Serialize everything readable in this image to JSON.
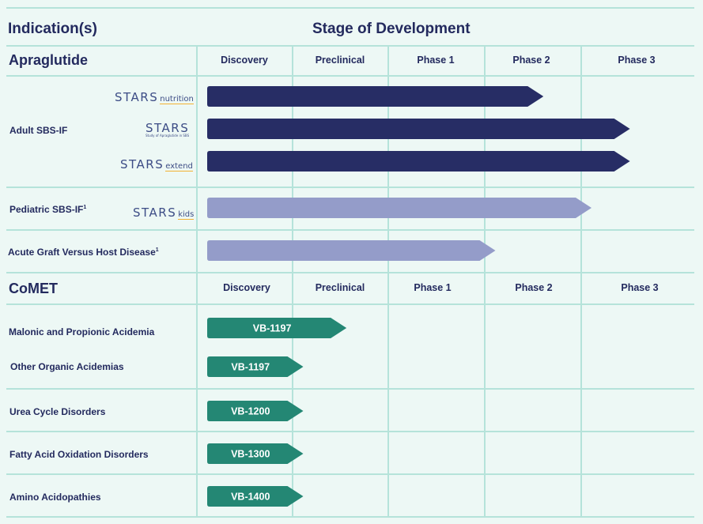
{
  "header": {
    "indications_title": "Indication(s)",
    "stage_title": "Stage of Development"
  },
  "sections": [
    {
      "name": "Apraglutide",
      "columns": [
        "Discovery",
        "Preclinical",
        "Phase 1",
        "Phase 2",
        "Phase 3"
      ]
    },
    {
      "name": "CoMET",
      "columns": [
        "Discovery",
        "Preclinical",
        "Phase 1",
        "Phase 2",
        "Phase 3"
      ]
    }
  ],
  "rows": [
    {
      "indication": "Adult SBS-IF",
      "footnote": ""
    },
    {
      "indication": "Pediatric SBS-IF",
      "footnote": "1"
    },
    {
      "indication": "Acute Graft Versus Host Disease",
      "footnote": "1"
    },
    {
      "indication": "Malonic and Propionic Acidemia",
      "footnote": ""
    },
    {
      "indication": "Other Organic Acidemias",
      "footnote": ""
    },
    {
      "indication": "Urea Cycle Disorders",
      "footnote": ""
    },
    {
      "indication": "Fatty Acid Oxidation Disorders",
      "footnote": ""
    },
    {
      "indication": "Amino Acidopathies",
      "footnote": ""
    }
  ],
  "trial_logos": [
    {
      "name": "STARS",
      "suffix": "nutrition",
      "subtitle": ""
    },
    {
      "name": "STARS",
      "suffix": "",
      "subtitle": "Study of Apraglutide in SBS"
    },
    {
      "name": "STARS",
      "suffix": "extend",
      "subtitle": ""
    },
    {
      "name": "STARS",
      "suffix": "kids",
      "subtitle": ""
    }
  ],
  "colors": {
    "background": "#edf8f5",
    "grid": "#b5e3da",
    "text": "#232a5e",
    "adult_bar": "#272d65",
    "lavender_bar": "#949cc9",
    "comet_bar": "#248774",
    "logo_accent": "#f2b232"
  },
  "chart_data": {
    "type": "bar",
    "orientation": "horizontal",
    "stage_axis": [
      "Discovery",
      "Preclinical",
      "Phase 1",
      "Phase 2",
      "Phase 3"
    ],
    "progress_unit": "stages completed (0-5)",
    "series": [
      {
        "section": "Apraglutide",
        "indication": "Adult SBS-IF",
        "trial": "STARS nutrition",
        "label": "",
        "progress": 3.5,
        "color": "#272d65"
      },
      {
        "section": "Apraglutide",
        "indication": "Adult SBS-IF",
        "trial": "STARS",
        "label": "",
        "progress": 4.4,
        "color": "#272d65"
      },
      {
        "section": "Apraglutide",
        "indication": "Adult SBS-IF",
        "trial": "STARS extend",
        "label": "",
        "progress": 4.4,
        "color": "#272d65"
      },
      {
        "section": "Apraglutide",
        "indication": "Pediatric SBS-IF",
        "trial": "STARS kids",
        "label": "",
        "progress": 4.0,
        "color": "#949cc9"
      },
      {
        "section": "Apraglutide",
        "indication": "Acute Graft Versus Host Disease",
        "trial": "",
        "label": "",
        "progress": 3.0,
        "color": "#949cc9"
      },
      {
        "section": "CoMET",
        "indication": "Malonic and Propionic Acidemia",
        "trial": "",
        "label": "VB-1197",
        "progress": 1.45,
        "color": "#248774"
      },
      {
        "section": "CoMET",
        "indication": "Other Organic Acidemias",
        "trial": "",
        "label": "VB-1197",
        "progress": 1.0,
        "color": "#248774"
      },
      {
        "section": "CoMET",
        "indication": "Urea Cycle Disorders",
        "trial": "",
        "label": "VB-1200",
        "progress": 1.0,
        "color": "#248774"
      },
      {
        "section": "CoMET",
        "indication": "Fatty Acid Oxidation Disorders",
        "trial": "",
        "label": "VB-1300",
        "progress": 1.0,
        "color": "#248774"
      },
      {
        "section": "CoMET",
        "indication": "Amino Acidopathies",
        "trial": "",
        "label": "VB-1400",
        "progress": 1.0,
        "color": "#248774"
      }
    ]
  }
}
